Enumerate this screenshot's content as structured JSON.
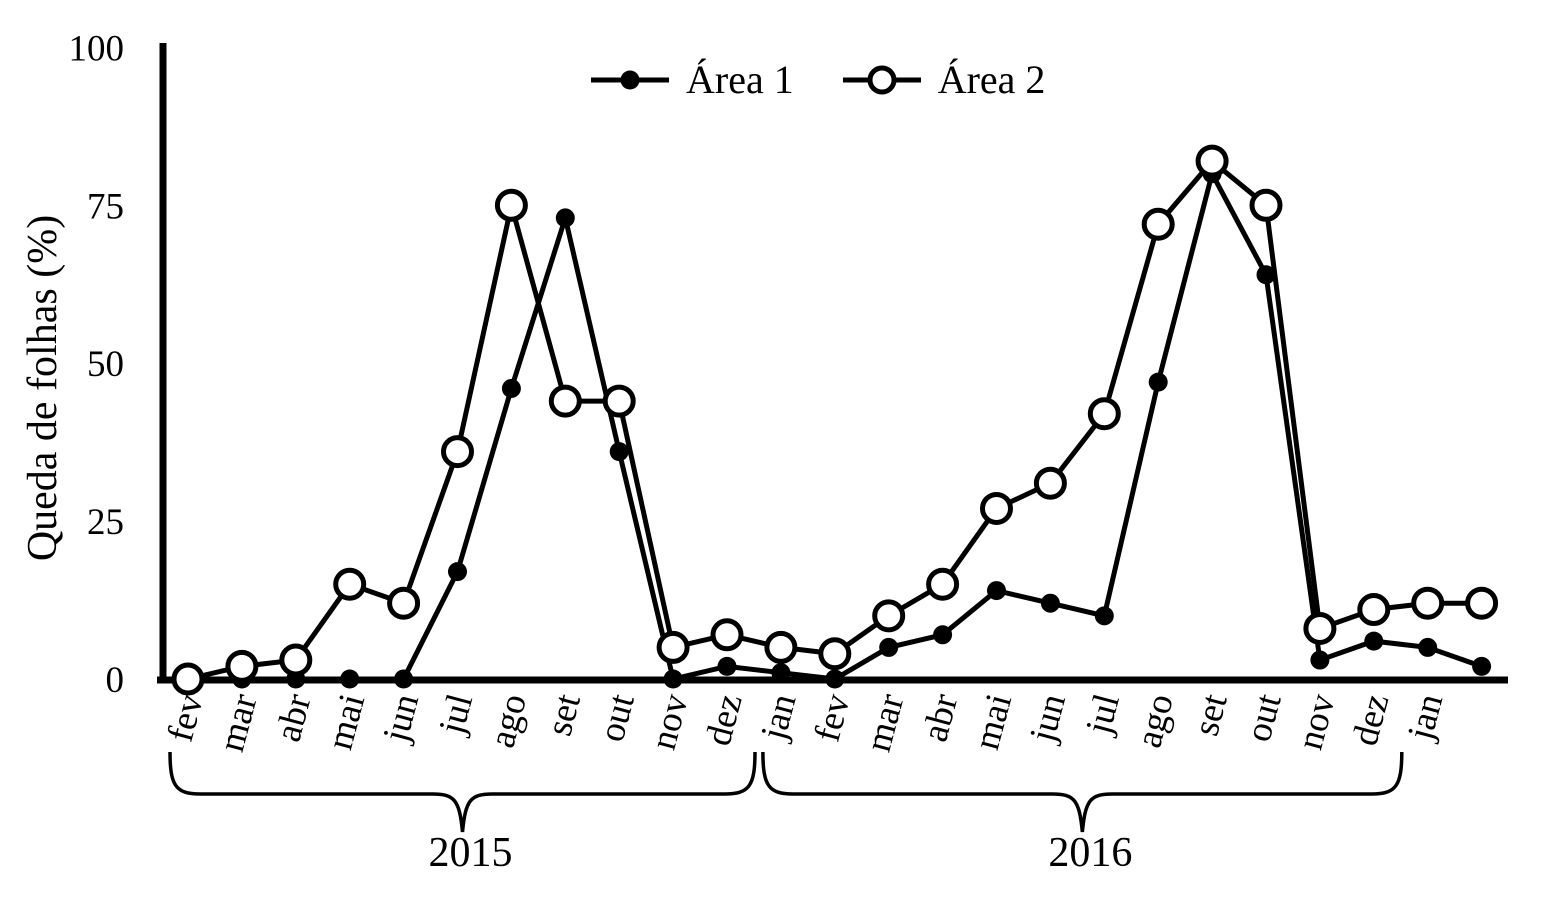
{
  "figure": {
    "background_color": "#ffffff",
    "ink_color": "#000000"
  },
  "y_axis": {
    "label": "Queda de folhas (%)"
  },
  "legend": {
    "items": [
      {
        "label": "Área 1",
        "marker": "filled-circle"
      },
      {
        "label": "Área 2",
        "marker": "open-circle"
      }
    ]
  },
  "chart_data": {
    "type": "line",
    "title": "",
    "xlabel": "",
    "ylabel": "Queda de folhas (%)",
    "ylim": [
      0,
      100
    ],
    "yticks": [
      0,
      25,
      50,
      75,
      100
    ],
    "grid": false,
    "legend_position": "top-center",
    "categories": [
      "fev",
      "mar",
      "abr",
      "mai",
      "jun",
      "jul",
      "ago",
      "set",
      "out",
      "nov",
      "dez",
      "jan",
      "fev",
      "mar",
      "abr",
      "mai",
      "jun",
      "jul",
      "ago",
      "set",
      "out",
      "nov",
      "dez",
      "jan",
      ""
    ],
    "year_groups": [
      {
        "label": "2015",
        "start_index": 0,
        "end_index": 10
      },
      {
        "label": "2016",
        "start_index": 11,
        "end_index": 22
      }
    ],
    "series": [
      {
        "name": "Área 1",
        "marker": "filled-circle",
        "values": [
          0,
          0,
          0,
          0,
          0,
          17,
          46,
          73,
          36,
          0,
          2,
          1,
          0,
          5,
          7,
          14,
          12,
          10,
          47,
          80,
          64,
          3,
          6,
          5,
          2
        ]
      },
      {
        "name": "Área 2",
        "marker": "open-circle",
        "values": [
          0,
          2,
          3,
          15,
          12,
          36,
          75,
          44,
          44,
          5,
          7,
          5,
          4,
          10,
          15,
          27,
          31,
          42,
          72,
          82,
          75,
          8,
          11,
          12,
          12
        ]
      }
    ]
  }
}
